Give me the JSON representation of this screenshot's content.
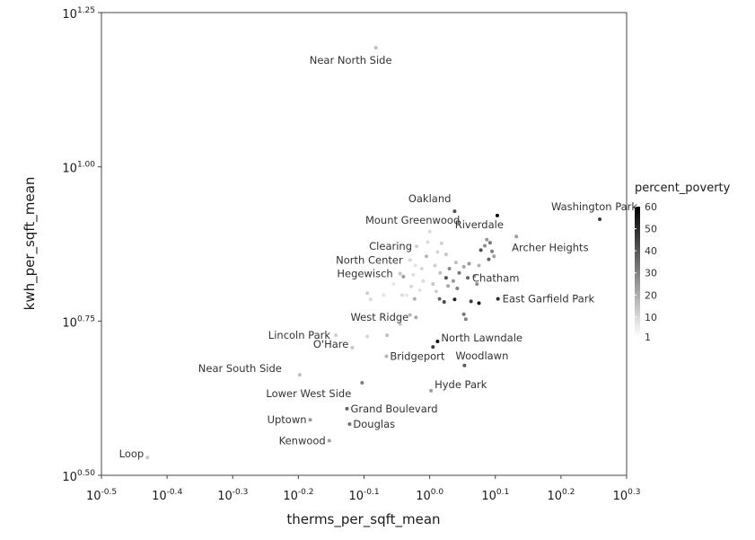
{
  "chart_data": {
    "type": "scatter",
    "xlabel": "therms_per_sqft_mean",
    "ylabel": "kwh_per_sqft_mean",
    "x_scale": "log10",
    "y_scale": "log10",
    "xlim_log10": [
      -0.5,
      0.3
    ],
    "ylim_log10": [
      0.5,
      1.25
    ],
    "x_ticks": [
      {
        "base": "10",
        "exp": "-0.5",
        "value": -0.5
      },
      {
        "base": "10",
        "exp": "-0.4",
        "value": -0.4
      },
      {
        "base": "10",
        "exp": "-0.3",
        "value": -0.3
      },
      {
        "base": "10",
        "exp": "-0.2",
        "value": -0.2
      },
      {
        "base": "10",
        "exp": "-0.1",
        "value": -0.1
      },
      {
        "base": "10",
        "exp": "0.0",
        "value": 0.0
      },
      {
        "base": "10",
        "exp": "0.1",
        "value": 0.1
      },
      {
        "base": "10",
        "exp": "0.2",
        "value": 0.2
      },
      {
        "base": "10",
        "exp": "0.3",
        "value": 0.3
      }
    ],
    "y_ticks": [
      {
        "base": "10",
        "exp": "0.50",
        "value": 0.5
      },
      {
        "base": "10",
        "exp": "0.75",
        "value": 0.75
      },
      {
        "base": "10",
        "exp": "1.00",
        "value": 1.0
      },
      {
        "base": "10",
        "exp": "1.25",
        "value": 1.25
      }
    ],
    "grid": false,
    "legend": {
      "title": "percent_poverty",
      "placement": "right",
      "min": 1,
      "max": 60,
      "ticks": [
        "60",
        "50",
        "40",
        "30",
        "20",
        "10",
        "1"
      ],
      "tick_values": [
        60,
        50,
        40,
        30,
        20,
        10,
        1
      ],
      "color_low": "#ffffff",
      "color_high": "#000000"
    },
    "colors": {
      "label": "#333333",
      "frame": "#444444"
    },
    "points": [
      {
        "name": "Near North Side",
        "log_x": -0.082,
        "log_y": 1.193,
        "poverty": 12
      },
      {
        "name": "Oakland",
        "log_x": 0.038,
        "log_y": 0.928,
        "poverty": 40
      },
      {
        "name": "Washington Park",
        "log_x": 0.259,
        "log_y": 0.915,
        "poverty": 45
      },
      {
        "name": "Riverdale",
        "log_x": 0.103,
        "log_y": 0.921,
        "poverty": 58
      },
      {
        "name": "Mount Greenwood",
        "log_x": 0.0,
        "log_y": 0.895,
        "poverty": 5
      },
      {
        "name": "Clearing",
        "log_x": -0.02,
        "log_y": 0.871,
        "poverty": 8
      },
      {
        "name": "Archer Heights",
        "log_x": 0.132,
        "log_y": 0.887,
        "poverty": 20
      },
      {
        "name": "North Center",
        "log_x": -0.03,
        "log_y": 0.849,
        "poverty": 6
      },
      {
        "name": "Hegewisch",
        "log_x": -0.045,
        "log_y": 0.827,
        "poverty": 10
      },
      {
        "name": "Chatham",
        "log_x": 0.058,
        "log_y": 0.82,
        "poverty": 35
      },
      {
        "name": "East Garfield Park",
        "log_x": 0.104,
        "log_y": 0.786,
        "poverty": 50
      },
      {
        "name": "West Ridge",
        "log_x": -0.021,
        "log_y": 0.756,
        "poverty": 18
      },
      {
        "name": "Lincoln Park",
        "log_x": -0.143,
        "log_y": 0.727,
        "poverty": 8
      },
      {
        "name": "North Lawndale",
        "log_x": 0.012,
        "log_y": 0.717,
        "poverty": 55
      },
      {
        "name": "O'Hare",
        "log_x": -0.118,
        "log_y": 0.707,
        "poverty": 10
      },
      {
        "name": "Bridgeport",
        "log_x": -0.066,
        "log_y": 0.693,
        "poverty": 15
      },
      {
        "name": "Woodlawn",
        "log_x": 0.053,
        "log_y": 0.678,
        "poverty": 38
      },
      {
        "name": "Near South Side",
        "log_x": -0.198,
        "log_y": 0.663,
        "poverty": 12
      },
      {
        "name": "Lower West Side",
        "log_x": -0.103,
        "log_y": 0.65,
        "poverty": 28
      },
      {
        "name": "Hyde Park",
        "log_x": 0.002,
        "log_y": 0.637,
        "poverty": 20
      },
      {
        "name": "Grand Boulevard",
        "log_x": -0.126,
        "log_y": 0.608,
        "poverty": 35
      },
      {
        "name": "Uptown",
        "log_x": -0.182,
        "log_y": 0.59,
        "poverty": 22
      },
      {
        "name": "Douglas",
        "log_x": -0.122,
        "log_y": 0.583,
        "poverty": 32
      },
      {
        "name": "Kenwood",
        "log_x": -0.153,
        "log_y": 0.556,
        "poverty": 20
      },
      {
        "name": "Loop",
        "log_x": -0.43,
        "log_y": 0.529,
        "poverty": 10
      },
      {
        "name": "",
        "log_x": 0.087,
        "log_y": 0.882,
        "poverty": 22
      },
      {
        "name": "",
        "log_x": 0.092,
        "log_y": 0.877,
        "poverty": 30
      },
      {
        "name": "",
        "log_x": 0.084,
        "log_y": 0.872,
        "poverty": 25
      },
      {
        "name": "",
        "log_x": 0.078,
        "log_y": 0.865,
        "poverty": 40
      },
      {
        "name": "",
        "log_x": 0.095,
        "log_y": 0.863,
        "poverty": 28
      },
      {
        "name": "",
        "log_x": 0.098,
        "log_y": 0.855,
        "poverty": 20
      },
      {
        "name": "",
        "log_x": 0.09,
        "log_y": 0.85,
        "poverty": 35
      },
      {
        "name": "",
        "log_x": 0.075,
        "log_y": 0.84,
        "poverty": 15
      },
      {
        "name": "",
        "log_x": 0.06,
        "log_y": 0.843,
        "poverty": 22
      },
      {
        "name": "",
        "log_x": 0.052,
        "log_y": 0.838,
        "poverty": 18
      },
      {
        "name": "",
        "log_x": 0.04,
        "log_y": 0.845,
        "poverty": 12
      },
      {
        "name": "",
        "log_x": 0.025,
        "log_y": 0.858,
        "poverty": 10
      },
      {
        "name": "",
        "log_x": 0.012,
        "log_y": 0.862,
        "poverty": 6
      },
      {
        "name": "",
        "log_x": 0.018,
        "log_y": 0.876,
        "poverty": 8
      },
      {
        "name": "",
        "log_x": -0.003,
        "log_y": 0.878,
        "poverty": 5
      },
      {
        "name": "",
        "log_x": -0.005,
        "log_y": 0.855,
        "poverty": 14
      },
      {
        "name": "",
        "log_x": 0.03,
        "log_y": 0.835,
        "poverty": 25
      },
      {
        "name": "",
        "log_x": 0.045,
        "log_y": 0.828,
        "poverty": 30
      },
      {
        "name": "",
        "log_x": 0.036,
        "log_y": 0.815,
        "poverty": 22
      },
      {
        "name": "",
        "log_x": 0.025,
        "log_y": 0.82,
        "poverty": 40
      },
      {
        "name": "",
        "log_x": 0.016,
        "log_y": 0.828,
        "poverty": 12
      },
      {
        "name": "",
        "log_x": 0.008,
        "log_y": 0.84,
        "poverty": 8
      },
      {
        "name": "",
        "log_x": -0.012,
        "log_y": 0.835,
        "poverty": 6
      },
      {
        "name": "",
        "log_x": -0.025,
        "log_y": 0.825,
        "poverty": 4
      },
      {
        "name": "",
        "log_x": -0.04,
        "log_y": 0.822,
        "poverty": 20
      },
      {
        "name": "",
        "log_x": -0.01,
        "log_y": 0.815,
        "poverty": 5
      },
      {
        "name": "",
        "log_x": 0.005,
        "log_y": 0.81,
        "poverty": 10
      },
      {
        "name": "",
        "log_x": 0.028,
        "log_y": 0.807,
        "poverty": 18
      },
      {
        "name": "",
        "log_x": 0.042,
        "log_y": 0.803,
        "poverty": 28
      },
      {
        "name": "",
        "log_x": -0.015,
        "log_y": 0.8,
        "poverty": 3
      },
      {
        "name": "",
        "log_x": 0.01,
        "log_y": 0.798,
        "poverty": 8
      },
      {
        "name": "",
        "log_x": -0.035,
        "log_y": 0.792,
        "poverty": 2
      },
      {
        "name": "",
        "log_x": -0.023,
        "log_y": 0.786,
        "poverty": 16
      },
      {
        "name": "",
        "log_x": -0.028,
        "log_y": 0.806,
        "poverty": 6
      },
      {
        "name": "",
        "log_x": 0.015,
        "log_y": 0.786,
        "poverty": 35
      },
      {
        "name": "",
        "log_x": 0.022,
        "log_y": 0.781,
        "poverty": 42
      },
      {
        "name": "",
        "log_x": 0.038,
        "log_y": 0.785,
        "poverty": 52
      },
      {
        "name": "",
        "log_x": 0.063,
        "log_y": 0.782,
        "poverty": 45
      },
      {
        "name": "",
        "log_x": 0.075,
        "log_y": 0.779,
        "poverty": 55
      },
      {
        "name": "",
        "log_x": 0.052,
        "log_y": 0.761,
        "poverty": 30
      },
      {
        "name": "",
        "log_x": 0.055,
        "log_y": 0.753,
        "poverty": 28
      },
      {
        "name": "",
        "log_x": -0.03,
        "log_y": 0.76,
        "poverty": 14
      },
      {
        "name": "",
        "log_x": -0.045,
        "log_y": 0.745,
        "poverty": 10
      },
      {
        "name": "",
        "log_x": -0.065,
        "log_y": 0.727,
        "poverty": 12
      },
      {
        "name": "",
        "log_x": -0.095,
        "log_y": 0.725,
        "poverty": 6
      },
      {
        "name": "",
        "log_x": -0.09,
        "log_y": 0.785,
        "poverty": 5
      },
      {
        "name": "",
        "log_x": -0.07,
        "log_y": 0.792,
        "poverty": 3
      },
      {
        "name": "",
        "log_x": -0.095,
        "log_y": 0.795,
        "poverty": 8
      },
      {
        "name": "",
        "log_x": 0.005,
        "log_y": 0.708,
        "poverty": 45
      },
      {
        "name": "",
        "log_x": -0.042,
        "log_y": 0.792,
        "poverty": 5
      },
      {
        "name": "",
        "log_x": -0.022,
        "log_y": 0.84,
        "poverty": 3
      },
      {
        "name": "",
        "log_x": -0.055,
        "log_y": 0.81,
        "poverty": 2
      },
      {
        "name": "",
        "log_x": 0.068,
        "log_y": 0.823,
        "poverty": 20
      },
      {
        "name": "",
        "log_x": 0.072,
        "log_y": 0.81,
        "poverty": 24
      }
    ]
  }
}
